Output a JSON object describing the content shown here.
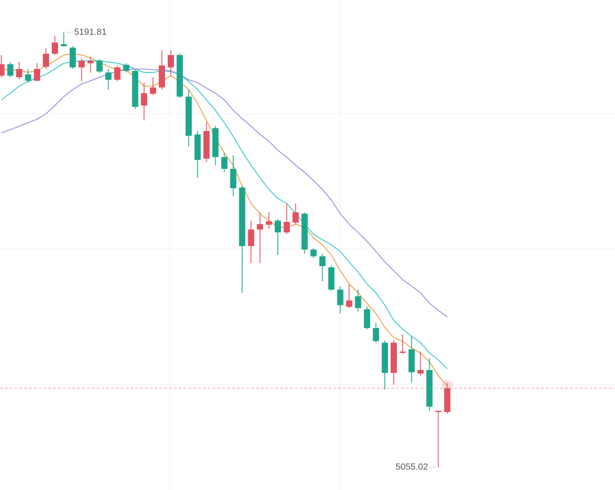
{
  "chart_data": {
    "type": "candlestick",
    "up_color": "#e2515f",
    "down_color": "#1ea68c",
    "open": [
      5178.2,
      5181.8,
      5177.7,
      5178.6,
      5176.6,
      5181.0,
      5185.1,
      5188.1,
      5187.0,
      5180.8,
      5182.1,
      5182.9,
      5179.2,
      5176.9,
      5181.6,
      5179.7,
      5168.8,
      5172.5,
      5174.5,
      5180.8,
      5184.7,
      5171.6,
      5159.7,
      5152.1,
      5161.7,
      5152.6,
      5148.9,
      5143.0,
      5124.6,
      5129.8,
      5131.3,
      5132.6,
      5128.9,
      5132.0,
      5134.8,
      5123.5,
      5121.4,
      5117.9,
      5110.9,
      5105.5,
      5108.8,
      5104.7,
      5098.8,
      5094.2,
      5084.7,
      5091.0,
      5092.1,
      5084.5,
      5085.6,
      5072.4,
      5072.4
    ],
    "high": [
      5184.7,
      5182.5,
      5182.5,
      5180.3,
      5182.1,
      5186.8,
      5190.7,
      5191.81,
      5187.5,
      5183.6,
      5184.2,
      5183.4,
      5180.3,
      5181.4,
      5182.1,
      5180.3,
      5176.0,
      5177.7,
      5186.2,
      5186.2,
      5185.1,
      5173.8,
      5160.8,
      5163.4,
      5162.5,
      5153.9,
      5153.2,
      5143.5,
      5132.6,
      5135.2,
      5135.2,
      5133.1,
      5138.0,
      5138.0,
      5135.2,
      5124.0,
      5122.2,
      5118.5,
      5112.0,
      5112.7,
      5110.9,
      5105.7,
      5100.5,
      5094.9,
      5094.9,
      5096.9,
      5096.2,
      5091.4,
      5089.3,
      5072.8,
      5081.5
    ],
    "low": [
      5177.7,
      5177.7,
      5177.1,
      5176.0,
      5176.4,
      5180.3,
      5184.7,
      5187.3,
      5180.3,
      5176.4,
      5179.2,
      5179.0,
      5173.8,
      5176.4,
      5179.2,
      5167.7,
      5164.1,
      5172.1,
      5173.8,
      5178.2,
      5171.2,
      5156.0,
      5146.1,
      5151.1,
      5150.0,
      5147.8,
      5140.2,
      5109.9,
      5119.2,
      5119.2,
      5130.0,
      5121.8,
      5128.3,
      5131.5,
      5122.2,
      5120.9,
      5113.5,
      5110.5,
      5103.4,
      5105.1,
      5104.0,
      5098.4,
      5094.2,
      5079.5,
      5081.0,
      5090.6,
      5081.7,
      5083.8,
      5072.6,
      5055.02,
      5071.9
    ],
    "close": [
      5181.8,
      5178.2,
      5180.3,
      5176.6,
      5180.3,
      5185.1,
      5188.6,
      5187.5,
      5180.8,
      5182.9,
      5182.9,
      5179.5,
      5176.9,
      5180.8,
      5179.7,
      5168.4,
      5172.7,
      5174.5,
      5181.4,
      5184.7,
      5171.6,
      5159.3,
      5151.7,
      5160.8,
      5152.6,
      5148.9,
      5142.8,
      5124.6,
      5129.8,
      5131.5,
      5132.4,
      5128.9,
      5132.2,
      5135.2,
      5123.5,
      5121.4,
      5118.3,
      5110.9,
      5106.0,
      5107.5,
      5105.1,
      5098.8,
      5094.7,
      5084.7,
      5094.2,
      5091.4,
      5084.9,
      5085.6,
      5074.1,
      5072.8,
      5079.9
    ],
    "lines": [
      {
        "color": "#f0a04b",
        "values": [
          5180.3,
          5179.9,
          5179.9,
          5179.2,
          5179.9,
          5181.2,
          5182.9,
          5184.7,
          5185.1,
          5184.7,
          5183.8,
          5182.5,
          5181.0,
          5180.1,
          5179.9,
          5177.7,
          5174.9,
          5174.9,
          5176.4,
          5178.2,
          5176.4,
          5173.8,
          5169.5,
          5164.1,
          5158.6,
          5153.9,
          5150.0,
          5143.5,
          5138.0,
          5134.8,
          5132.6,
          5130.5,
          5130.5,
          5131.5,
          5130.5,
          5127.2,
          5125.0,
          5121.8,
          5116.8,
          5112.7,
          5109.9,
          5106.6,
          5103.4,
          5099.0,
          5095.8,
          5094.7,
          5092.5,
          5091.0,
          5088.2,
          5083.8,
          5080.6
        ]
      },
      {
        "color": "#3cc8c8",
        "values": [
          5170.6,
          5172.7,
          5174.9,
          5176.4,
          5177.5,
          5178.6,
          5180.3,
          5182.1,
          5182.5,
          5182.9,
          5182.9,
          5182.9,
          5182.5,
          5182.1,
          5181.4,
          5180.3,
          5179.2,
          5179.2,
          5179.7,
          5179.5,
          5178.6,
          5176.4,
          5173.8,
          5170.6,
          5167.3,
          5163.4,
          5159.1,
          5154.3,
          5150.0,
          5146.1,
          5142.4,
          5139.6,
          5138.0,
          5134.8,
          5131.5,
          5128.3,
          5126.6,
          5125.0,
          5122.9,
          5119.6,
          5116.4,
          5112.7,
          5109.9,
          5106.0,
          5101.2,
          5098.4,
          5096.2,
          5094.2,
          5091.0,
          5088.8,
          5086.0
        ]
      },
      {
        "color": "#9b8fd8",
        "values": [
          5160.2,
          5161.2,
          5162.3,
          5163.4,
          5164.5,
          5166.2,
          5168.8,
          5171.6,
          5173.8,
          5175.6,
          5176.6,
          5177.7,
          5178.8,
          5179.5,
          5180.1,
          5180.3,
          5180.3,
          5180.1,
          5179.9,
          5179.7,
          5178.6,
          5176.9,
          5176.0,
          5174.3,
          5172.7,
          5170.6,
          5167.3,
          5164.7,
          5162.3,
          5159.7,
          5157.6,
          5154.7,
          5152.6,
          5150.0,
          5147.8,
          5145.2,
          5142.4,
          5139.1,
          5134.8,
          5131.5,
          5128.9,
          5126.1,
          5122.9,
          5119.6,
          5116.8,
          5114.0,
          5112.0,
          5109.9,
          5106.6,
          5104.4,
          5102.3
        ]
      }
    ]
  }
}
